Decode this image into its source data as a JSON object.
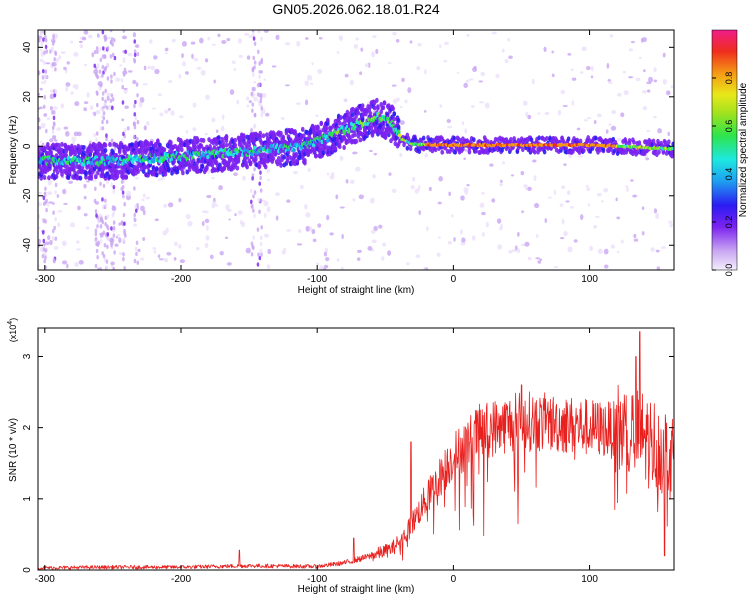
{
  "title": "GN05.2026.062.18.01.R24",
  "chart_data": [
    {
      "type": "heatmap",
      "xlabel": "Height of straight line (km)",
      "ylabel": "Frequency (Hz)",
      "xlim": [
        -305,
        162
      ],
      "ylim": [
        -50,
        47
      ],
      "xticks": [
        "-300",
        "-200",
        "-100",
        "0",
        "100"
      ],
      "yticks": [
        "40",
        "20",
        "0",
        "-20",
        "-40"
      ],
      "ridge_x": [
        -300,
        -250,
        -200,
        -150,
        -110,
        -90,
        -70,
        -55,
        -45,
        -38,
        -30,
        -10,
        0,
        100,
        160
      ],
      "ridge_freq": [
        -6,
        -6,
        -4,
        -2,
        0,
        4,
        9,
        12,
        9,
        3,
        1,
        0.5,
        0.5,
        0.5,
        -1
      ],
      "colorbar": {
        "label": "Normalized spectral amplitude",
        "range": [
          0,
          1
        ],
        "ticks": [
          "0.0",
          "0.2",
          "0.4",
          "0.6",
          "0.8"
        ]
      }
    },
    {
      "type": "line",
      "xlabel": "Height of straight line (km)",
      "ylabel": "SNR (10 * v/v)",
      "yscale_label": "(x10",
      "yscale_exp": "4",
      "yscale_close": ")",
      "xlim": [
        -305,
        162
      ],
      "ylim": [
        0,
        3.4
      ],
      "xticks": [
        "-300",
        "-200",
        "-100",
        "0",
        "100"
      ],
      "yticks": [
        "3",
        "2",
        "1",
        "0"
      ],
      "color": "#e8201e",
      "trend_x": [
        -305,
        -250,
        -200,
        -150,
        -100,
        -80,
        -60,
        -45,
        -35,
        -20,
        0,
        20,
        50,
        80,
        100,
        125,
        140,
        162
      ],
      "trend_y": [
        0.03,
        0.04,
        0.04,
        0.06,
        0.05,
        0.1,
        0.2,
        0.3,
        0.5,
        1.0,
        1.6,
        1.95,
        2.1,
        2.05,
        2.0,
        1.95,
        1.85,
        1.6
      ],
      "spikes": [
        {
          "x": -157,
          "y": 0.28
        },
        {
          "x": -73,
          "y": 0.45
        },
        {
          "x": -31,
          "y": 1.8
        },
        {
          "x": 50,
          "y": 2.6
        },
        {
          "x": 134,
          "y": 3.0
        },
        {
          "x": 137,
          "y": 3.35
        },
        {
          "x": 155,
          "y": 0.2
        }
      ]
    }
  ]
}
